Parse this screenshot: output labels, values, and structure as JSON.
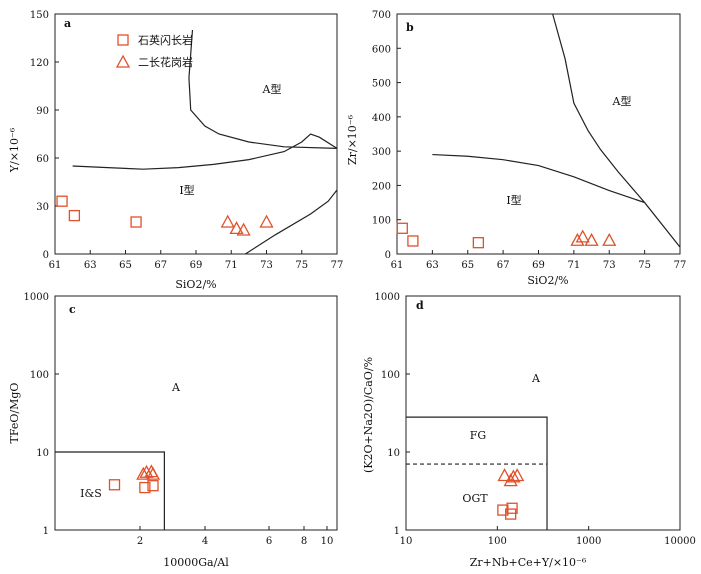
{
  "colors": {
    "marker": "#e0502a",
    "line": "#222222"
  },
  "legend": {
    "square": "石英闪长岩",
    "triangle": "二长花岗岩"
  },
  "chart_data": [
    {
      "panel": "a",
      "type": "scatter",
      "xlabel": "SiO2/%",
      "ylabel": "Y/×10⁻⁶",
      "xlim": [
        61,
        77
      ],
      "ylim": [
        0,
        150
      ],
      "xticks": [
        "61",
        "63",
        "65",
        "67",
        "69",
        "71",
        "73",
        "75",
        "77"
      ],
      "yticks": [
        "0",
        "30",
        "60",
        "90",
        "120",
        "150"
      ],
      "regions": [
        "A型",
        "I型"
      ],
      "series": [
        {
          "name": "石英闪长岩",
          "marker": "square",
          "points": [
            [
              61.4,
              33
            ],
            [
              62.1,
              24
            ],
            [
              65.6,
              20
            ]
          ]
        },
        {
          "name": "二长花岗岩",
          "marker": "triangle",
          "points": [
            [
              70.8,
              20
            ],
            [
              71.3,
              16
            ],
            [
              71.7,
              15
            ],
            [
              73.0,
              20
            ]
          ]
        }
      ],
      "boundaries": [
        [
          [
            62,
            55
          ],
          [
            64,
            54
          ],
          [
            66,
            53
          ],
          [
            68,
            54
          ],
          [
            70,
            56
          ],
          [
            72,
            59
          ],
          [
            74,
            64
          ],
          [
            75,
            70
          ],
          [
            75.5,
            75
          ],
          [
            76,
            73
          ],
          [
            77,
            66
          ]
        ],
        [
          [
            68.8,
            140
          ],
          [
            68.6,
            110
          ],
          [
            68.7,
            90
          ],
          [
            69.5,
            80
          ],
          [
            70.3,
            75
          ],
          [
            72,
            70
          ],
          [
            74,
            67
          ],
          [
            77,
            66
          ]
        ],
        [
          [
            71.8,
            0
          ],
          [
            73.5,
            12
          ],
          [
            75.5,
            25
          ],
          [
            76.5,
            33
          ],
          [
            77,
            40
          ]
        ]
      ]
    },
    {
      "panel": "b",
      "type": "scatter",
      "xlabel": "SiO2/%",
      "ylabel": "Zr/×10⁻⁶",
      "xlim": [
        61,
        77
      ],
      "ylim": [
        0,
        700
      ],
      "xticks": [
        "61",
        "63",
        "65",
        "67",
        "69",
        "71",
        "73",
        "75",
        "77"
      ],
      "yticks": [
        "0",
        "100",
        "200",
        "300",
        "400",
        "500",
        "600",
        "700"
      ],
      "regions": [
        "A型",
        "I型"
      ],
      "series": [
        {
          "name": "石英闪长岩",
          "marker": "square",
          "points": [
            [
              61.3,
              75
            ],
            [
              61.9,
              38
            ],
            [
              65.6,
              33
            ]
          ]
        },
        {
          "name": "二长花岗岩",
          "marker": "triangle",
          "points": [
            [
              71.2,
              40
            ],
            [
              71.5,
              50
            ],
            [
              72.0,
              40
            ],
            [
              73.0,
              40
            ]
          ]
        }
      ],
      "boundaries": [
        [
          [
            63,
            290
          ],
          [
            65,
            285
          ],
          [
            67,
            275
          ],
          [
            69,
            258
          ],
          [
            71,
            225
          ],
          [
            73,
            185
          ],
          [
            75,
            150
          ],
          [
            77,
            20
          ]
        ],
        [
          [
            69.8,
            700
          ],
          [
            70.5,
            570
          ],
          [
            71,
            440
          ],
          [
            71.8,
            360
          ],
          [
            72.5,
            305
          ],
          [
            73.5,
            240
          ],
          [
            75,
            150
          ]
        ]
      ]
    },
    {
      "panel": "c",
      "type": "scatter",
      "xlabel": "10000Ga/Al",
      "ylabel": "TFeO/MgO",
      "xscale": "linear-log-like",
      "ylim": [
        1,
        1000
      ],
      "xticks": [
        "2",
        "4",
        "6",
        "8",
        "10"
      ],
      "yticks": [
        "1",
        "10",
        "100",
        "1000"
      ],
      "regions": [
        "A",
        "I&S"
      ],
      "series": [
        {
          "name": "石英闪长岩",
          "marker": "square",
          "points": [
            [
              1.7,
              3.8
            ],
            [
              2.15,
              3.5
            ],
            [
              2.4,
              3.7
            ]
          ]
        },
        {
          "name": "二长花岗岩",
          "marker": "triangle",
          "points": [
            [
              2.1,
              5.2
            ],
            [
              2.2,
              5.5
            ],
            [
              2.35,
              5.6
            ],
            [
              2.4,
              5.2
            ]
          ]
        }
      ],
      "boundaries": [
        [
          [
            1,
            10
          ],
          [
            2.75,
            10
          ],
          [
            2.75,
            1
          ]
        ]
      ]
    },
    {
      "panel": "d",
      "type": "scatter",
      "xlabel": "Zr+Nb+Ce+Y/×10⁻⁶",
      "ylabel": "(K2O+Na2O)/CaO/%",
      "xscale": "log",
      "yscale": "log",
      "xlim": [
        10,
        10000
      ],
      "ylim": [
        1,
        1000
      ],
      "xticks": [
        "10",
        "100",
        "1000",
        "10000"
      ],
      "yticks": [
        "1",
        "10",
        "100",
        "1000"
      ],
      "regions": [
        "A",
        "FG",
        "OGT"
      ],
      "series": [
        {
          "name": "石英闪长岩",
          "marker": "square",
          "points": [
            [
              115,
              1.8
            ],
            [
              145,
              1.9
            ],
            [
              140,
              1.6
            ]
          ]
        },
        {
          "name": "二长花岗岩",
          "marker": "triangle",
          "points": [
            [
              120,
              5
            ],
            [
              140,
              4.3
            ],
            [
              150,
              4.8
            ],
            [
              165,
              5
            ]
          ]
        }
      ],
      "boundaries": [
        [
          [
            10,
            28
          ],
          [
            350,
            28
          ],
          [
            350,
            1
          ]
        ]
      ],
      "dashed_boundary": [
        [
          10,
          7
        ],
        [
          350,
          7
        ]
      ]
    }
  ]
}
